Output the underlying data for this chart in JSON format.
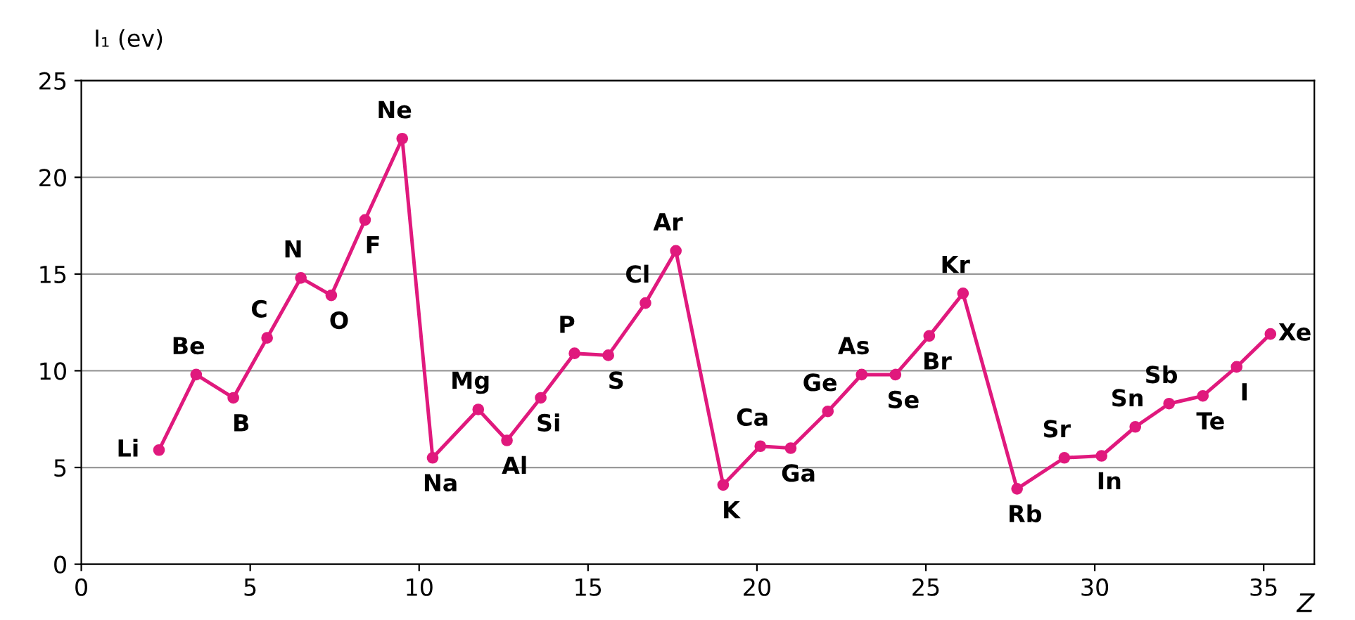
{
  "chart_data": {
    "type": "line",
    "ylabel": "I₁ (ev)",
    "xlabel": "Z",
    "x": [
      2.3,
      3.4,
      4.5,
      5.5,
      6.5,
      7.4,
      8.4,
      9.5,
      10.4,
      11.75,
      12.6,
      13.6,
      14.6,
      15.6,
      16.7,
      17.6,
      19.0,
      20.1,
      21.0,
      22.1,
      23.1,
      24.1,
      25.1,
      26.1,
      27.7,
      29.1,
      30.2,
      31.2,
      32.2,
      33.2,
      34.2,
      35.2
    ],
    "series": [
      {
        "color": "#e0197d",
        "values": [
          5.9,
          9.8,
          8.6,
          11.7,
          14.8,
          13.9,
          17.8,
          22.0,
          5.5,
          8.0,
          6.4,
          8.6,
          10.9,
          10.8,
          13.5,
          16.2,
          4.1,
          6.1,
          6.0,
          7.9,
          9.8,
          9.8,
          11.8,
          14.0,
          3.9,
          5.5,
          5.6,
          7.1,
          8.3,
          8.7,
          10.2,
          11.9
        ]
      }
    ],
    "annotations": [
      {
        "text": "Li",
        "x": 2.3,
        "y": 5.9
      },
      {
        "text": "Be",
        "x": 3.4,
        "y": 9.8
      },
      {
        "text": "B",
        "x": 4.5,
        "y": 8.6
      },
      {
        "text": "C",
        "x": 5.5,
        "y": 11.7
      },
      {
        "text": "N",
        "x": 6.5,
        "y": 14.8
      },
      {
        "text": "O",
        "x": 7.4,
        "y": 13.9
      },
      {
        "text": "F",
        "x": 8.4,
        "y": 17.8
      },
      {
        "text": "Ne",
        "x": 9.5,
        "y": 22.0
      },
      {
        "text": "Na",
        "x": 10.4,
        "y": 5.5
      },
      {
        "text": "Mg",
        "x": 11.75,
        "y": 8.0
      },
      {
        "text": "Al",
        "x": 12.6,
        "y": 6.4
      },
      {
        "text": "Si",
        "x": 13.6,
        "y": 8.6
      },
      {
        "text": "P",
        "x": 14.6,
        "y": 10.9
      },
      {
        "text": "S",
        "x": 15.6,
        "y": 10.8
      },
      {
        "text": "Cl",
        "x": 16.7,
        "y": 13.5
      },
      {
        "text": "Ar",
        "x": 17.6,
        "y": 16.2
      },
      {
        "text": "K",
        "x": 19.0,
        "y": 4.1
      },
      {
        "text": "Ca",
        "x": 20.1,
        "y": 6.1
      },
      {
        "text": "Ga",
        "x": 21.0,
        "y": 6.0
      },
      {
        "text": "Ge",
        "x": 22.1,
        "y": 7.9
      },
      {
        "text": "As",
        "x": 23.1,
        "y": 9.8
      },
      {
        "text": "Se",
        "x": 24.1,
        "y": 9.8
      },
      {
        "text": "Br",
        "x": 25.1,
        "y": 11.8
      },
      {
        "text": "Kr",
        "x": 26.1,
        "y": 14.0
      },
      {
        "text": "Rb",
        "x": 27.7,
        "y": 3.9
      },
      {
        "text": "Sr",
        "x": 29.1,
        "y": 5.5
      },
      {
        "text": "In",
        "x": 30.2,
        "y": 5.6
      },
      {
        "text": "Sn",
        "x": 31.2,
        "y": 7.1
      },
      {
        "text": "Sb",
        "x": 32.2,
        "y": 8.3
      },
      {
        "text": "Te",
        "x": 33.2,
        "y": 8.7
      },
      {
        "text": "I",
        "x": 34.2,
        "y": 10.2
      },
      {
        "text": "Xe",
        "x": 35.2,
        "y": 11.9
      }
    ],
    "xlim": [
      0,
      36.5
    ],
    "ylim": [
      0,
      25
    ],
    "xticks": [
      0,
      5,
      10,
      15,
      20,
      25,
      30,
      35
    ],
    "yticks": [
      0,
      5,
      10,
      15,
      20,
      25
    ],
    "grid": "y",
    "marker": "circle",
    "line_style": "solid",
    "legend": false
  }
}
